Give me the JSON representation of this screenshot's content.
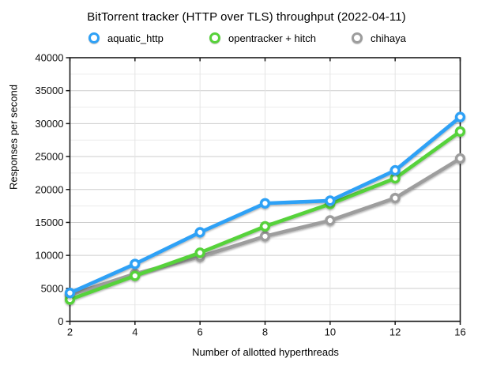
{
  "window": {
    "title": "BitTorrent tracker throughput chart"
  },
  "chart_data": {
    "type": "line",
    "title": "BitTorrent tracker (HTTP over TLS) throughput (2022-04-11)",
    "xlabel": "Number of allotted hyperthreads",
    "ylabel": "Responses per second",
    "categories": [
      2,
      4,
      6,
      8,
      10,
      12,
      16
    ],
    "x_tick_labels": [
      "2",
      "4",
      "6",
      "8",
      "10",
      "12",
      "16"
    ],
    "y_tick_labels": [
      "0",
      "5000",
      "10000",
      "15000",
      "20000",
      "25000",
      "30000",
      "35000",
      "40000"
    ],
    "ylim": [
      0,
      40000
    ],
    "y_major_step": 5000,
    "y_minor_step": 2500,
    "grid": true,
    "legend_position": "top",
    "marker": "open-circle",
    "series": [
      {
        "name": "aquatic_http",
        "color": "#2fa1f6",
        "values": [
          4300,
          8700,
          13500,
          17900,
          18300,
          22900,
          31000
        ]
      },
      {
        "name": "opentracker + hitch",
        "color": "#57d23a",
        "values": [
          3300,
          6900,
          10400,
          14400,
          17800,
          21700,
          28800
        ]
      },
      {
        "name": "chihaya",
        "color": "#9d9d9d",
        "values": [
          4000,
          7200,
          9800,
          12900,
          15300,
          18700,
          24700
        ]
      }
    ]
  },
  "colors": {
    "background": "#ffffff",
    "axis": "#1a1a1a",
    "grid_major": "#cdcdcd",
    "grid_minor": "#ececec",
    "grid_vertical": "#e4e4e4",
    "tick_label": "#111111",
    "marker_fill": "#ffffff"
  }
}
